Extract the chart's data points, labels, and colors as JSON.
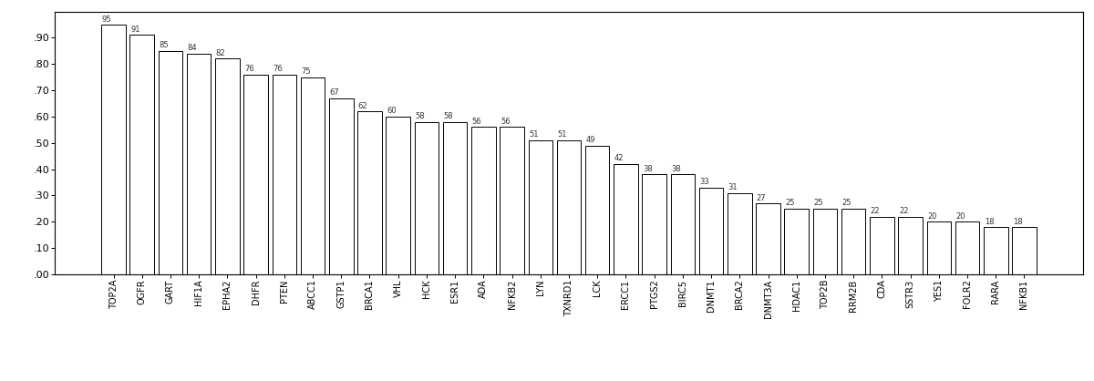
{
  "categories": [
    "TOP2A",
    "OGFR",
    "GART",
    "HIF1A",
    "EPHA2",
    "DHFR",
    "PTEN",
    "ABCC1",
    "GSTP1",
    "BRCA1",
    "VHL",
    "HCK",
    "ESR1",
    "ADA",
    "NFKB2",
    "LYN",
    "TXNRD1",
    "LCK",
    "ERCC1",
    "PTGS2",
    "BIRC5",
    "DNMT1",
    "BRCA2",
    "DNMT3A",
    "HDAC1",
    "TOP2B",
    "RRM2B",
    "CDA",
    "SSTR3",
    "YES1",
    "FOLR2",
    "RARA",
    "NFKB1"
  ],
  "values": [
    0.95,
    0.91,
    0.85,
    0.84,
    0.82,
    0.76,
    0.76,
    0.75,
    0.67,
    0.62,
    0.6,
    0.58,
    0.58,
    0.56,
    0.56,
    0.51,
    0.51,
    0.49,
    0.42,
    0.38,
    0.38,
    0.33,
    0.31,
    0.27,
    0.25,
    0.25,
    0.25,
    0.22,
    0.22,
    0.2,
    0.2,
    0.18,
    0.18
  ],
  "value_labels": [
    "95",
    "91",
    "85",
    "84",
    "82",
    "76",
    "76",
    "75",
    "67",
    "62",
    "60",
    "58",
    "58",
    "56",
    "56",
    "51",
    "51",
    "49",
    "42",
    "38",
    "38",
    "33",
    "31",
    "27",
    "25",
    "25",
    "25",
    "22",
    "22",
    "20",
    "20",
    "18",
    "18"
  ],
  "bar_color": "#ffffff",
  "bar_edge_color": "#000000",
  "background_color": "#ffffff",
  "ylim": [
    0.0,
    1.0
  ],
  "yticks": [
    0.0,
    0.1,
    0.2,
    0.3,
    0.4,
    0.5,
    0.6,
    0.7,
    0.8,
    0.9
  ],
  "ytick_labels": [
    ".00",
    ".10",
    ".20",
    ".30",
    ".40",
    ".50",
    ".60",
    ".70",
    ".80",
    ".90"
  ],
  "figsize": [
    12.0,
    4.18
  ],
  "dpi": 100
}
